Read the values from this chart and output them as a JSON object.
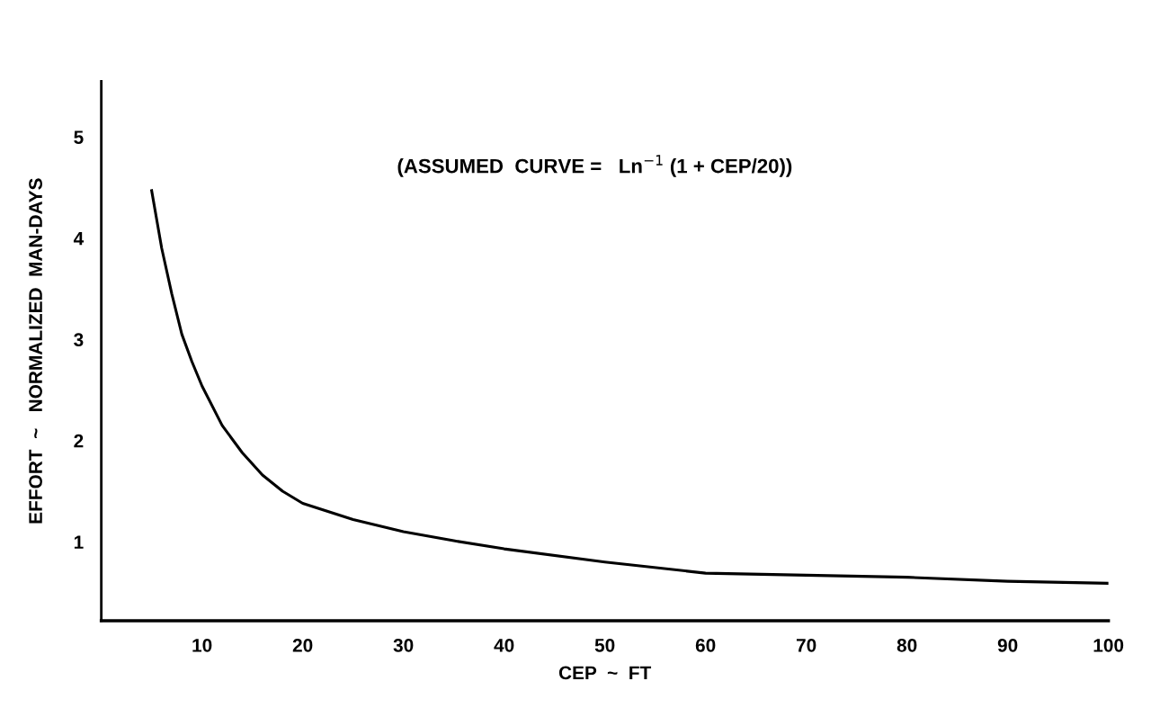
{
  "chart_data": {
    "type": "line",
    "xlabel": "CEP  ~  FT",
    "ylabel": "EFFORT  ~   NORMALIZED  MAN-DAYS",
    "annotations": [
      "(ASSUMED  CURVE =   Ln$^{−1}$ (1 + CEP/20))"
    ],
    "x": [
      5,
      6,
      7,
      8,
      9,
      10,
      12,
      14,
      16,
      18,
      20,
      25,
      30,
      35,
      40,
      50,
      60,
      70,
      80,
      90,
      100
    ],
    "series": [
      {
        "color": "#000000",
        "values": [
          4.47,
          3.9,
          3.45,
          3.05,
          2.78,
          2.54,
          2.15,
          1.88,
          1.66,
          1.5,
          1.38,
          1.22,
          1.1,
          1.01,
          0.93,
          0.8,
          0.69,
          0.67,
          0.65,
          0.61,
          0.59
        ]
      }
    ],
    "xlim": [
      0,
      100
    ],
    "ylim": [
      0.22,
      5.55
    ],
    "xticks": [
      10,
      20,
      30,
      40,
      50,
      60,
      70,
      80,
      90,
      100
    ],
    "yticks": [
      1,
      2,
      3,
      4,
      5
    ],
    "grid": false,
    "legend": false,
    "marker": "none",
    "line_style": "solid"
  }
}
